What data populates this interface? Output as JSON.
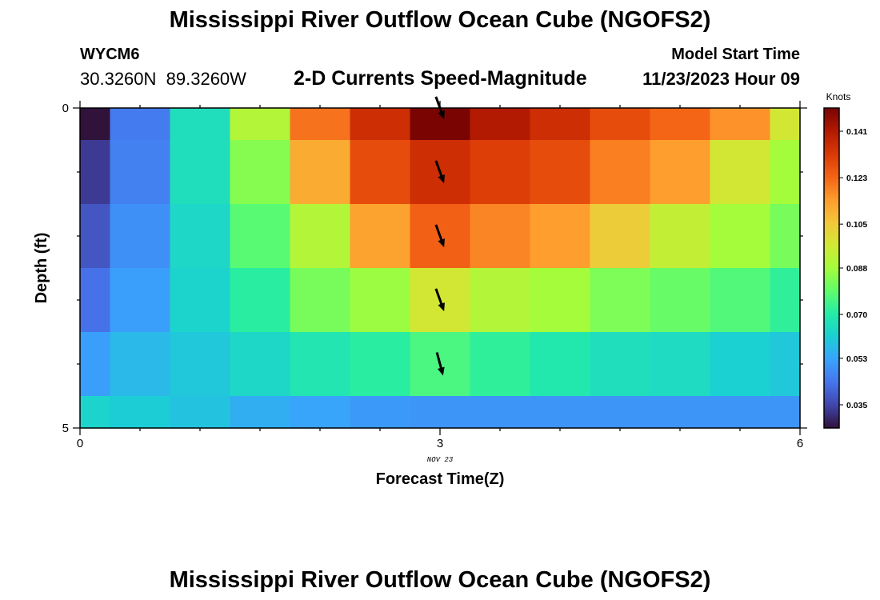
{
  "page": {
    "title": "Mississippi River Outflow Ocean Cube (NGOFS2)",
    "station_id": "WYCM6",
    "coordinates": "30.3260N  89.3260W",
    "subtitle": "2-D Currents Speed-Magnitude",
    "model_start_label": "Model Start Time",
    "model_start_value": "11/23/2023 Hour 09",
    "footer_title": "Mississippi River Outflow Ocean Cube (NGOFS2)"
  },
  "chart_data": {
    "type": "heatmap",
    "title": "2-D Currents Speed-Magnitude",
    "xlabel": "Forecast Time(Z)",
    "ylabel": "Depth (ft)",
    "x_ticks": [
      "0",
      "3",
      "6"
    ],
    "x_date_label": "NOV 23",
    "y_ticks": [
      "0",
      "5"
    ],
    "xlim": [
      0,
      6
    ],
    "ylim": [
      0,
      5
    ],
    "x_bins": [
      0,
      0.25,
      0.75,
      1.25,
      1.75,
      2.25,
      2.75,
      3.25,
      3.75,
      4.25,
      4.75,
      5.25,
      5.75,
      6.0
    ],
    "y_bins": [
      0,
      0.5,
      1.5,
      2.5,
      3.5,
      4.5,
      5.0
    ],
    "colorbar": {
      "label": "Knots",
      "min": 0.026,
      "max": 0.15,
      "ticks": [
        "0.141",
        "0.123",
        "0.105",
        "0.088",
        "0.070",
        "0.053",
        "0.035"
      ],
      "colors": [
        "#30123b",
        "#4145ab",
        "#4675ed",
        "#39a2fc",
        "#1bcfd4",
        "#24eca6",
        "#61fc6c",
        "#a4fc3b",
        "#d1e834",
        "#f3c63a",
        "#fe9b2d",
        "#f36315",
        "#d93806",
        "#b11901",
        "#7a0402"
      ]
    },
    "values": [
      [
        0.026,
        0.045,
        0.066,
        0.091,
        0.121,
        0.135,
        0.15,
        0.141,
        0.135,
        0.128,
        0.123,
        0.116,
        0.097
      ],
      [
        0.033,
        0.046,
        0.066,
        0.084,
        0.111,
        0.128,
        0.135,
        0.131,
        0.128,
        0.119,
        0.114,
        0.097,
        0.088
      ],
      [
        0.038,
        0.049,
        0.064,
        0.078,
        0.091,
        0.113,
        0.124,
        0.118,
        0.114,
        0.104,
        0.094,
        0.088,
        0.082
      ],
      [
        0.043,
        0.052,
        0.063,
        0.071,
        0.082,
        0.087,
        0.097,
        0.091,
        0.088,
        0.083,
        0.08,
        0.077,
        0.072
      ],
      [
        0.052,
        0.057,
        0.06,
        0.064,
        0.068,
        0.071,
        0.076,
        0.072,
        0.069,
        0.066,
        0.065,
        0.062,
        0.06
      ],
      [
        0.063,
        0.061,
        0.059,
        0.055,
        0.053,
        0.051,
        0.05,
        0.05,
        0.05,
        0.05,
        0.05,
        0.05,
        0.05
      ]
    ],
    "vectors": [
      {
        "x": 3,
        "depth": 0,
        "direction_deg": 160
      },
      {
        "x": 3,
        "depth": 1,
        "direction_deg": 160
      },
      {
        "x": 3,
        "depth": 2,
        "direction_deg": 160
      },
      {
        "x": 3,
        "depth": 3,
        "direction_deg": 160
      },
      {
        "x": 3,
        "depth": 4,
        "direction_deg": 165
      }
    ]
  }
}
